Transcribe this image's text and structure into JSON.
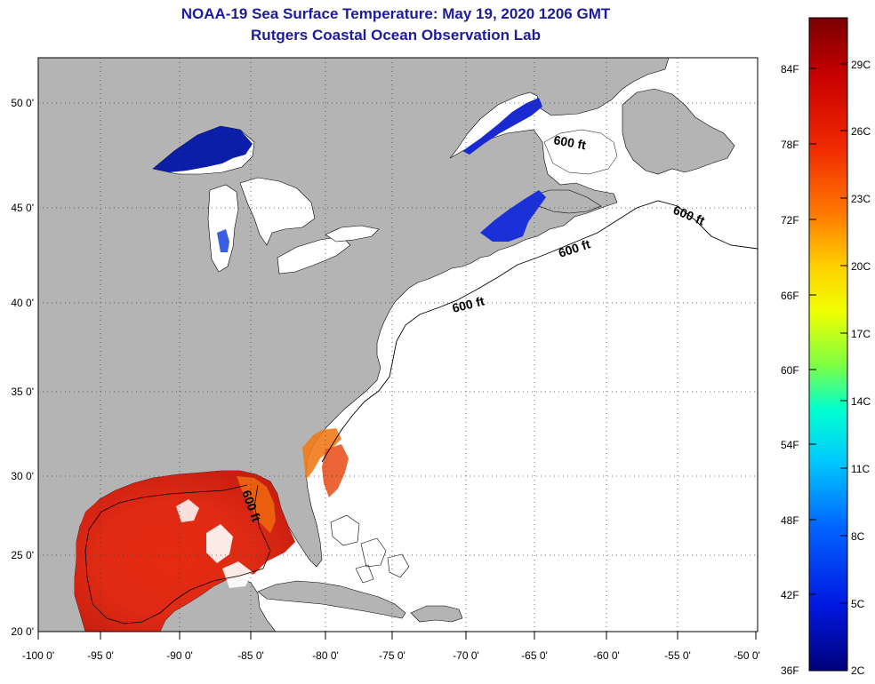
{
  "title": {
    "line1": "NOAA-19 Sea Surface Temperature:  May 19, 2020 1206 GMT",
    "line2": "Rutgers Coastal Ocean Observation Lab"
  },
  "map": {
    "lat_labels": [
      "50 0'",
      "45 0'",
      "40 0'",
      "35 0'",
      "30 0'",
      "25 0'",
      "20 0'"
    ],
    "lon_labels": [
      "-100 0'",
      "-95 0'",
      "-90 0'",
      "-85 0'",
      "-80 0'",
      "-75 0'",
      "-70 0'",
      "-65 0'",
      "-60 0'",
      "-55 0'",
      "-50 0'"
    ],
    "contour_labels": [
      "600 ft",
      "600 ft",
      "600 ft",
      "600 ft",
      "600 ft"
    ],
    "land_color": "#b4b4b4",
    "ocean_color": "#ffffff",
    "grid_style": "dotted"
  },
  "colorbar": {
    "fahrenheit_labels": [
      "84F",
      "78F",
      "72F",
      "66F",
      "60F",
      "54F",
      "48F",
      "42F",
      "36F"
    ],
    "celsius_labels": [
      "29C",
      "26C",
      "23C",
      "20C",
      "17C",
      "14C",
      "11C",
      "8C",
      "5C",
      "2C"
    ],
    "colors_top_to_bottom": [
      "#7a0000",
      "#c80000",
      "#f02a00",
      "#ff7a00",
      "#ffd000",
      "#f0ff00",
      "#80ff40",
      "#00ffd0",
      "#00c8ff",
      "#0064ff",
      "#0018e0",
      "#00007a"
    ]
  }
}
